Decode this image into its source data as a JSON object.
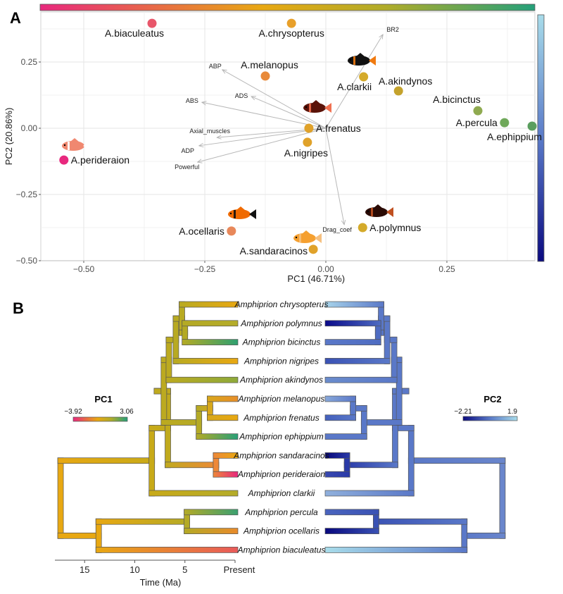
{
  "chart_data": [
    {
      "type": "scatter",
      "panel": "A",
      "title": "",
      "xlabel": "PC1 (46.71%)",
      "ylabel": "PC2 (20.86%)",
      "xlim": [
        -0.59,
        0.43
      ],
      "ylim": [
        -0.5,
        0.44
      ],
      "xticks": [
        -0.5,
        -0.25,
        0.0,
        0.25
      ],
      "xtick_labels": [
        "−0.50",
        "−0.25",
        "0.00",
        "0.25"
      ],
      "yticks": [
        -0.5,
        -0.25,
        0.0,
        0.25
      ],
      "ytick_labels": [
        "−0.50",
        "−0.25",
        "0.00",
        "0.25"
      ],
      "grid": true,
      "points": [
        {
          "label": "A.biaculeatus",
          "x": -0.359,
          "y": 0.396,
          "color": "#e8566a",
          "label_pos": "below"
        },
        {
          "label": "A.chrysopterus",
          "x": -0.071,
          "y": 0.396,
          "color": "#e8a02a",
          "label_pos": "below"
        },
        {
          "label": "A.melanopus",
          "x": -0.125,
          "y": 0.197,
          "color": "#e88a3a",
          "label_pos": "above"
        },
        {
          "label": "A.clarkii",
          "x": 0.078,
          "y": 0.194,
          "color": "#d4aa2a",
          "label_pos": "below"
        },
        {
          "label": "A.akindynos",
          "x": 0.15,
          "y": 0.141,
          "color": "#c4a22c",
          "label_pos": "above"
        },
        {
          "label": "A.bicinctus",
          "x": 0.314,
          "y": 0.066,
          "color": "#8faa50",
          "label_pos": "above"
        },
        {
          "label": "A.percula",
          "x": 0.369,
          "y": 0.021,
          "color": "#6fa85a",
          "label_pos": "left"
        },
        {
          "label": "A.ephippium",
          "x": 0.426,
          "y": 0.008,
          "color": "#5a9e5e",
          "label_pos": "below"
        },
        {
          "label": "A.frenatus",
          "x": -0.035,
          "y": 0.0,
          "color": "#e0a22a",
          "label_pos": "right"
        },
        {
          "label": "A.nigripes",
          "x": -0.038,
          "y": -0.053,
          "color": "#e0a22a",
          "label_pos": "below"
        },
        {
          "label": "A.perideraion",
          "x": -0.541,
          "y": -0.12,
          "color": "#e8287e",
          "label_pos": "right"
        },
        {
          "label": "A.ocellaris",
          "x": -0.195,
          "y": -0.388,
          "color": "#e8885a",
          "label_pos": "left"
        },
        {
          "label": "A.polymnus",
          "x": 0.076,
          "y": -0.375,
          "color": "#d4aa2a",
          "label_pos": "right"
        },
        {
          "label": "A.sandaracinos",
          "x": -0.026,
          "y": -0.457,
          "color": "#e0a22a",
          "label_pos": "left"
        }
      ],
      "loadings": [
        {
          "label": "ABP",
          "x": -0.214,
          "y": 0.221
        },
        {
          "label": "ADS",
          "x": -0.154,
          "y": 0.12
        },
        {
          "label": "ABS",
          "x": -0.256,
          "y": 0.098
        },
        {
          "label": "Axial_muscles",
          "x": -0.225,
          "y": -0.035
        },
        {
          "label": "ADP",
          "x": -0.262,
          "y": -0.066
        },
        {
          "label": "Powerful",
          "x": -0.265,
          "y": -0.128
        },
        {
          "label": "BR2",
          "x": 0.118,
          "y": 0.354
        },
        {
          "label": "Drag_coef",
          "x": 0.038,
          "y": -0.364
        }
      ],
      "fish_icons": [
        {
          "near": "A.perideraion",
          "style": "pink"
        },
        {
          "near": "A.frenatus",
          "style": "dark-red"
        },
        {
          "near": "A.clarkii",
          "style": "black-orange"
        },
        {
          "near": "A.ocellaris",
          "style": "orange-striped"
        },
        {
          "near": "A.polymnus",
          "style": "dark-brown"
        },
        {
          "near": "A.sandaracinos",
          "style": "orange-plain"
        }
      ],
      "colorbars": {
        "top": {
          "variable": "PC1",
          "from": "#e8287e",
          "mid": "#e8a812",
          "to": "#24a07a"
        },
        "right": {
          "variable": "PC2",
          "from": "#0a0a80",
          "to": "#a8dcea"
        }
      }
    },
    {
      "type": "tree",
      "panel": "B",
      "xlabel": "Time (Ma)",
      "xticks": [
        15,
        10,
        5,
        0
      ],
      "xtick_labels": [
        "15",
        "10",
        "5",
        "Present"
      ],
      "tips": [
        "Amphiprion chrysopterus",
        "Amphiprion polymnus",
        "Amphiprion bicinctus",
        "Amphiprion nigripes",
        "Amphiprion akindynos",
        "Amphiprion melanopus",
        "Amphiprion frenatus",
        "Amphiprion ephippium",
        "Amphiprion sandaracinos",
        "Amphiprion perideraion",
        "Amphiprion clarkii",
        "Amphiprion percula",
        "Amphiprion ocellaris",
        "Amphiprion biaculeatus"
      ],
      "pc1_tip_colors": [
        "#e8a812",
        "#b4ac2a",
        "#2ea070",
        "#e8a812",
        "#8eaa3a",
        "#e88e2a",
        "#e8a812",
        "#28a078",
        "#e8a812",
        "#e8287e",
        "#b4ac2a",
        "#3aa070",
        "#e88a2a",
        "#e85a5a"
      ],
      "pc2_tip_colors": [
        "#a8d4ea",
        "#0a0a8a",
        "#5a78c8",
        "#3a52b4",
        "#6a8ccc",
        "#88a8da",
        "#4460bc",
        "#5a78c8",
        "#06067a",
        "#3848b0",
        "#90b0dc",
        "#4a64be",
        "#08087e",
        "#a8dcea"
      ],
      "legend_pc1": {
        "title": "PC1",
        "min": "−3.92",
        "max": "3.06",
        "min_value": -3.92,
        "max_value": 3.06
      },
      "legend_pc2": {
        "title": "PC2",
        "min": "−2.21",
        "max": "1.9",
        "min_value": -2.21,
        "max_value": 1.9
      }
    }
  ],
  "panels": {
    "a_label": "A",
    "b_label": "B"
  }
}
